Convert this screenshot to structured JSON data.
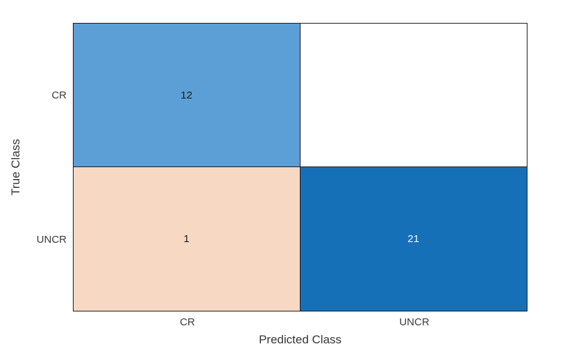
{
  "chart_data": {
    "type": "heatmap",
    "chart_kind": "confusion-matrix",
    "title": "",
    "xlabel": "Predicted Class",
    "ylabel": "True Class",
    "x_categories": [
      "CR",
      "UNCR"
    ],
    "y_categories": [
      "CR",
      "UNCR"
    ],
    "matrix": [
      [
        12,
        0
      ],
      [
        1,
        21
      ]
    ],
    "cells": [
      {
        "true_class": "CR",
        "predicted_class": "CR",
        "value": 12,
        "label": "12",
        "bg": "#5c9fd6",
        "text_color": "#1a1a1a"
      },
      {
        "true_class": "CR",
        "predicted_class": "UNCR",
        "value": 0,
        "label": "",
        "bg": "#ffffff",
        "text_color": "#1a1a1a"
      },
      {
        "true_class": "UNCR",
        "predicted_class": "CR",
        "value": 1,
        "label": "1",
        "bg": "#f7d8c2",
        "text_color": "#1a1a1a"
      },
      {
        "true_class": "UNCR",
        "predicted_class": "UNCR",
        "value": 21,
        "label": "21",
        "bg": "#1670b8",
        "text_color": "#f5f5f5"
      }
    ],
    "layout": {
      "grid": "off",
      "legend": "none",
      "axis_line_color": "#1a1a1a",
      "background_color": "#ffffff",
      "label_text_color": "#343434"
    }
  }
}
